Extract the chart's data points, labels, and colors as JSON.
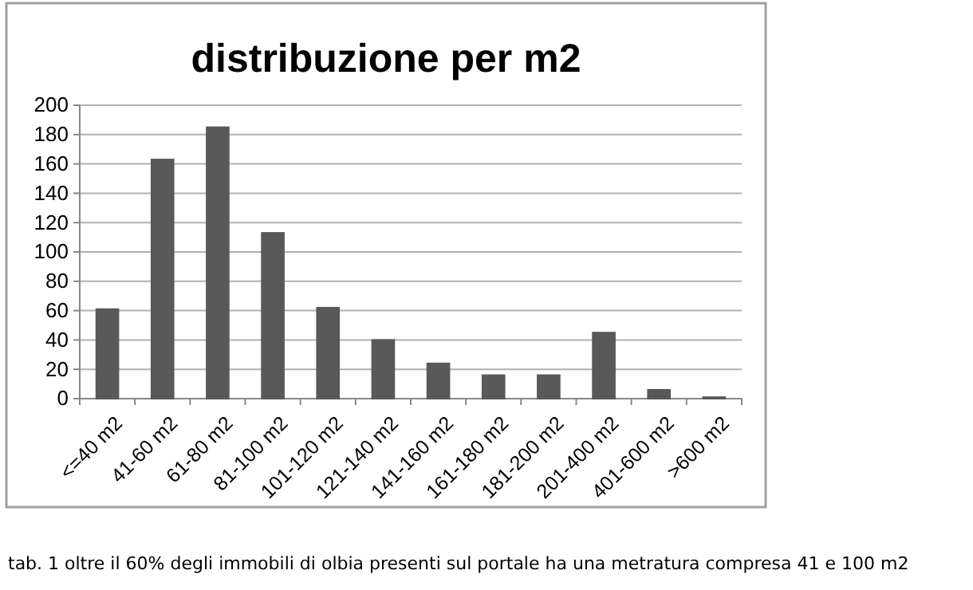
{
  "chart_data": {
    "type": "bar",
    "title": "distribuzione per m2",
    "categories": [
      "<=40 m2",
      "41-60 m2",
      "61-80 m2",
      "81-100 m2",
      "101-120 m2",
      "121-140 m2",
      "141-160 m2",
      "161-180 m2",
      "181-200 m2",
      "201-400 m2",
      "401-600 m2",
      ">600 m2"
    ],
    "values": [
      61,
      163,
      185,
      113,
      62,
      40,
      24,
      16,
      16,
      45,
      6,
      1
    ],
    "color": "#595959",
    "ylim": [
      0,
      200
    ],
    "yticks": [
      0,
      20,
      40,
      60,
      80,
      100,
      120,
      140,
      160,
      180,
      200
    ],
    "grid": "y",
    "annotations": [
      "tab. 1 oltre il 60% degli immobili di olbia presenti sul portale ha una metratura compresa 41 e 100 m2"
    ]
  }
}
